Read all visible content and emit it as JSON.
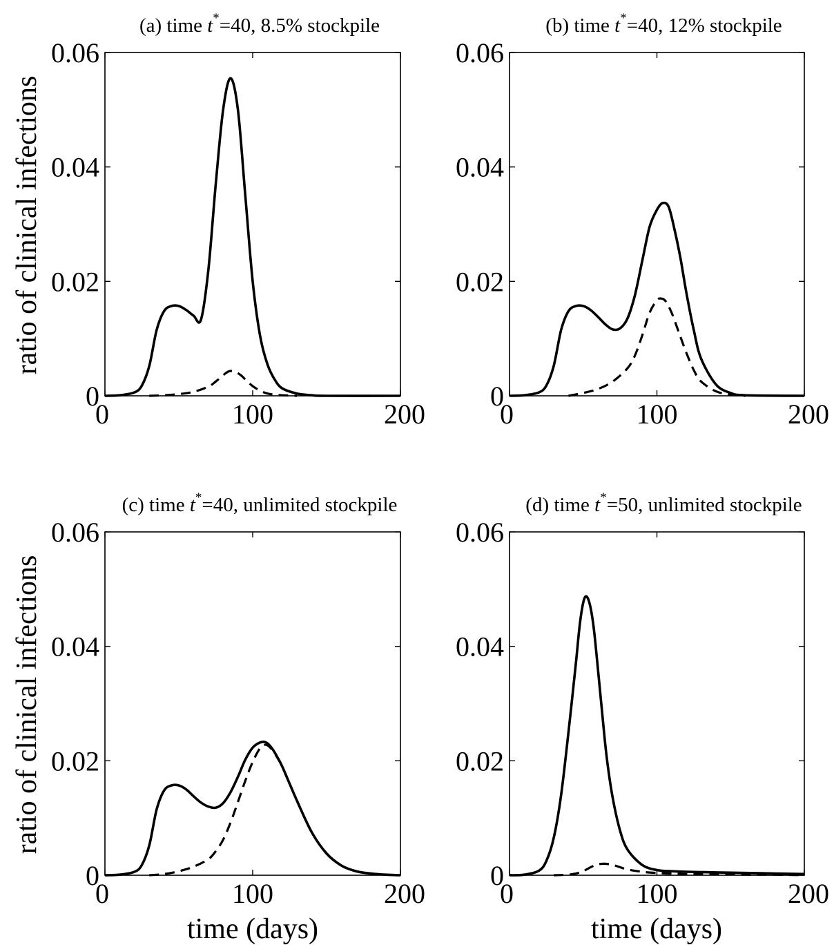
{
  "ylabel": "ratio of clinical infections",
  "xlabel": "time (days)",
  "chart_data": [
    {
      "type": "line",
      "title_prefix": "(a) time ",
      "title_var": "t",
      "title_sup": "*",
      "title_suffix": "=40, 8.5% stockpile",
      "xlim": [
        0,
        200
      ],
      "ylim": [
        0,
        0.06
      ],
      "xticks": [
        0,
        100,
        200
      ],
      "xticklabels": [
        "0",
        "100",
        "200"
      ],
      "yticks": [
        0,
        0.02,
        0.04,
        0.06
      ],
      "yticklabels": [
        "0",
        "0.02",
        "0.04",
        "0.06"
      ],
      "series": [
        {
          "style": "solid",
          "x": [
            0,
            10,
            20,
            25,
            30,
            35,
            40,
            45,
            50,
            55,
            60,
            65,
            70,
            75,
            80,
            85,
            90,
            95,
            100,
            105,
            110,
            115,
            120,
            130,
            140,
            150,
            200
          ],
          "y": [
            0,
            0.0001,
            0.0006,
            0.0018,
            0.0052,
            0.0115,
            0.0148,
            0.0157,
            0.0157,
            0.015,
            0.014,
            0.0133,
            0.022,
            0.037,
            0.05,
            0.0555,
            0.05,
            0.035,
            0.02,
            0.0105,
            0.0055,
            0.0028,
            0.0013,
            0.0004,
            0.0001,
            0,
            0
          ]
        },
        {
          "style": "dashed",
          "x": [
            30,
            40,
            50,
            60,
            70,
            75,
            80,
            84,
            88,
            92,
            96,
            100,
            105,
            110,
            115,
            120,
            130
          ],
          "y": [
            0,
            0.0001,
            0.0003,
            0.0007,
            0.0016,
            0.0025,
            0.0036,
            0.0043,
            0.0042,
            0.0036,
            0.0026,
            0.0017,
            0.0009,
            0.0004,
            0.0002,
            0.0001,
            0
          ]
        }
      ]
    },
    {
      "type": "line",
      "title_prefix": "(b) time ",
      "title_var": "t",
      "title_sup": "*",
      "title_suffix": "=40, 12% stockpile",
      "xlim": [
        0,
        200
      ],
      "ylim": [
        0,
        0.06
      ],
      "xticks": [
        0,
        100,
        200
      ],
      "xticklabels": [
        "0",
        "100",
        "200"
      ],
      "yticks": [
        0,
        0.02,
        0.04,
        0.06
      ],
      "yticklabels": [
        "0",
        "0.02",
        "0.04",
        "0.06"
      ],
      "series": [
        {
          "style": "solid",
          "x": [
            0,
            10,
            20,
            25,
            30,
            35,
            40,
            45,
            50,
            55,
            60,
            65,
            70,
            75,
            80,
            85,
            90,
            95,
            100,
            104,
            108,
            112,
            116,
            120,
            125,
            130,
            140,
            150,
            160,
            200
          ],
          "y": [
            0,
            0.0001,
            0.0006,
            0.0018,
            0.0052,
            0.0115,
            0.0148,
            0.0157,
            0.0157,
            0.015,
            0.0138,
            0.0125,
            0.0116,
            0.0118,
            0.0135,
            0.0175,
            0.0235,
            0.0295,
            0.0325,
            0.0337,
            0.033,
            0.029,
            0.024,
            0.018,
            0.0115,
            0.0065,
            0.002,
            0.0005,
            0.0001,
            0
          ]
        },
        {
          "style": "dashed",
          "x": [
            40,
            50,
            60,
            70,
            80,
            85,
            90,
            95,
            100,
            103,
            106,
            110,
            115,
            120,
            125,
            130,
            140,
            150,
            160
          ],
          "y": [
            0,
            0.0005,
            0.0012,
            0.0025,
            0.0048,
            0.007,
            0.0105,
            0.0145,
            0.0167,
            0.017,
            0.0165,
            0.0145,
            0.011,
            0.0075,
            0.0045,
            0.0025,
            0.0008,
            0.0002,
            0
          ]
        }
      ]
    },
    {
      "type": "line",
      "title_prefix": "(c) time ",
      "title_var": "t",
      "title_sup": "*",
      "title_suffix": "=40, unlimited stockpile",
      "xlim": [
        0,
        200
      ],
      "ylim": [
        0,
        0.06
      ],
      "xticks": [
        0,
        100,
        200
      ],
      "xticklabels": [
        "0",
        "100",
        "200"
      ],
      "yticks": [
        0,
        0.02,
        0.04,
        0.06
      ],
      "yticklabels": [
        "0",
        "0.02",
        "0.04",
        "0.06"
      ],
      "series": [
        {
          "style": "solid",
          "x": [
            0,
            10,
            20,
            25,
            30,
            35,
            40,
            45,
            50,
            55,
            60,
            65,
            70,
            75,
            80,
            85,
            90,
            95,
            100,
            105,
            109,
            113,
            117,
            120,
            125,
            130,
            140,
            150,
            160,
            170,
            180,
            190,
            200
          ],
          "y": [
            0,
            0.0001,
            0.0006,
            0.0018,
            0.0052,
            0.0115,
            0.0148,
            0.0157,
            0.0157,
            0.015,
            0.0138,
            0.0127,
            0.012,
            0.0118,
            0.0126,
            0.0145,
            0.0172,
            0.0202,
            0.0223,
            0.0232,
            0.0232,
            0.0222,
            0.0205,
            0.019,
            0.016,
            0.013,
            0.0075,
            0.0038,
            0.0017,
            0.0007,
            0.0003,
            0.0001,
            0
          ]
        },
        {
          "style": "dashed",
          "x": [
            30,
            40,
            50,
            60,
            70,
            75,
            80,
            85,
            90,
            95,
            100,
            105,
            109,
            113,
            117,
            120,
            125,
            130,
            140,
            150,
            160,
            170,
            180,
            190,
            200
          ],
          "y": [
            0,
            0.0002,
            0.0007,
            0.0015,
            0.0028,
            0.0042,
            0.0062,
            0.0092,
            0.0128,
            0.0165,
            0.0198,
            0.0222,
            0.0228,
            0.022,
            0.0204,
            0.019,
            0.016,
            0.013,
            0.0075,
            0.0038,
            0.0017,
            0.0007,
            0.0003,
            0.0001,
            0
          ]
        }
      ]
    },
    {
      "type": "line",
      "title_prefix": "(d) time ",
      "title_var": "t",
      "title_sup": "*",
      "title_suffix": "=50, unlimited stockpile",
      "xlim": [
        0,
        200
      ],
      "ylim": [
        0,
        0.06
      ],
      "xticks": [
        0,
        100,
        200
      ],
      "xticklabels": [
        "0",
        "100",
        "200"
      ],
      "yticks": [
        0,
        0.02,
        0.04,
        0.06
      ],
      "yticklabels": [
        "0",
        "0.02",
        "0.04",
        "0.06"
      ],
      "series": [
        {
          "style": "solid",
          "x": [
            0,
            10,
            20,
            25,
            30,
            35,
            40,
            45,
            48,
            51,
            54,
            57,
            60,
            63,
            66,
            70,
            75,
            80,
            90,
            100,
            110,
            120,
            140,
            160,
            180,
            200
          ],
          "y": [
            0,
            0.0001,
            0.0008,
            0.0025,
            0.0065,
            0.014,
            0.025,
            0.037,
            0.0445,
            0.0485,
            0.0478,
            0.0435,
            0.036,
            0.028,
            0.0205,
            0.0135,
            0.0078,
            0.0045,
            0.0018,
            0.0009,
            0.0007,
            0.0006,
            0.0005,
            0.0004,
            0.0003,
            0.0002
          ]
        },
        {
          "style": "dashed",
          "x": [
            30,
            40,
            45,
            50,
            55,
            60,
            65,
            70,
            75,
            80,
            90,
            100,
            110,
            120,
            140,
            160,
            180,
            200
          ],
          "y": [
            0,
            0.0001,
            0.0003,
            0.0007,
            0.0014,
            0.0019,
            0.002,
            0.0018,
            0.0014,
            0.001,
            0.0006,
            0.0004,
            0.0003,
            0.0002,
            0.0002,
            0.0001,
            0.0001,
            0
          ]
        }
      ]
    }
  ]
}
